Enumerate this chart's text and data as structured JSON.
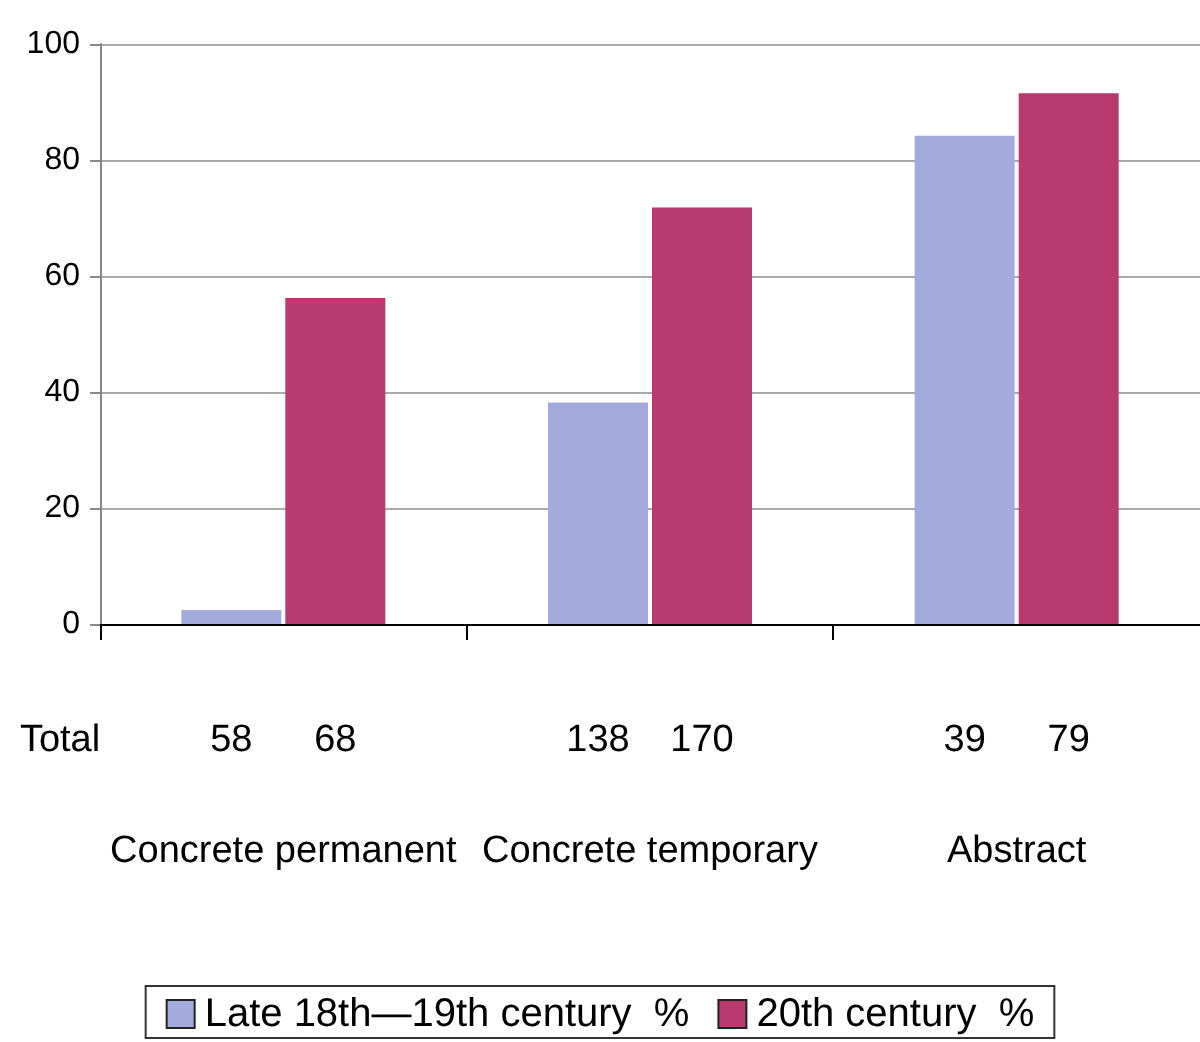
{
  "chart_data": {
    "type": "bar",
    "categories": [
      "Concrete permanent",
      "Concrete temporary",
      "Abstract"
    ],
    "series": [
      {
        "name": "Late 18th—19th century  %",
        "color": "#a2abdb",
        "values": [
          2.4,
          38.2,
          84.2
        ]
      },
      {
        "name": "20th century  %",
        "color": "#b93a6e",
        "values": [
          56.2,
          71.8,
          91.5
        ]
      }
    ],
    "ylim": [
      0,
      100
    ],
    "yticks": [
      0,
      20,
      40,
      60,
      80,
      100
    ],
    "grid": "y",
    "legend": "bottom",
    "annotations": [
      "Total",
      "58",
      "68",
      "138",
      "170",
      "39",
      "79"
    ]
  }
}
